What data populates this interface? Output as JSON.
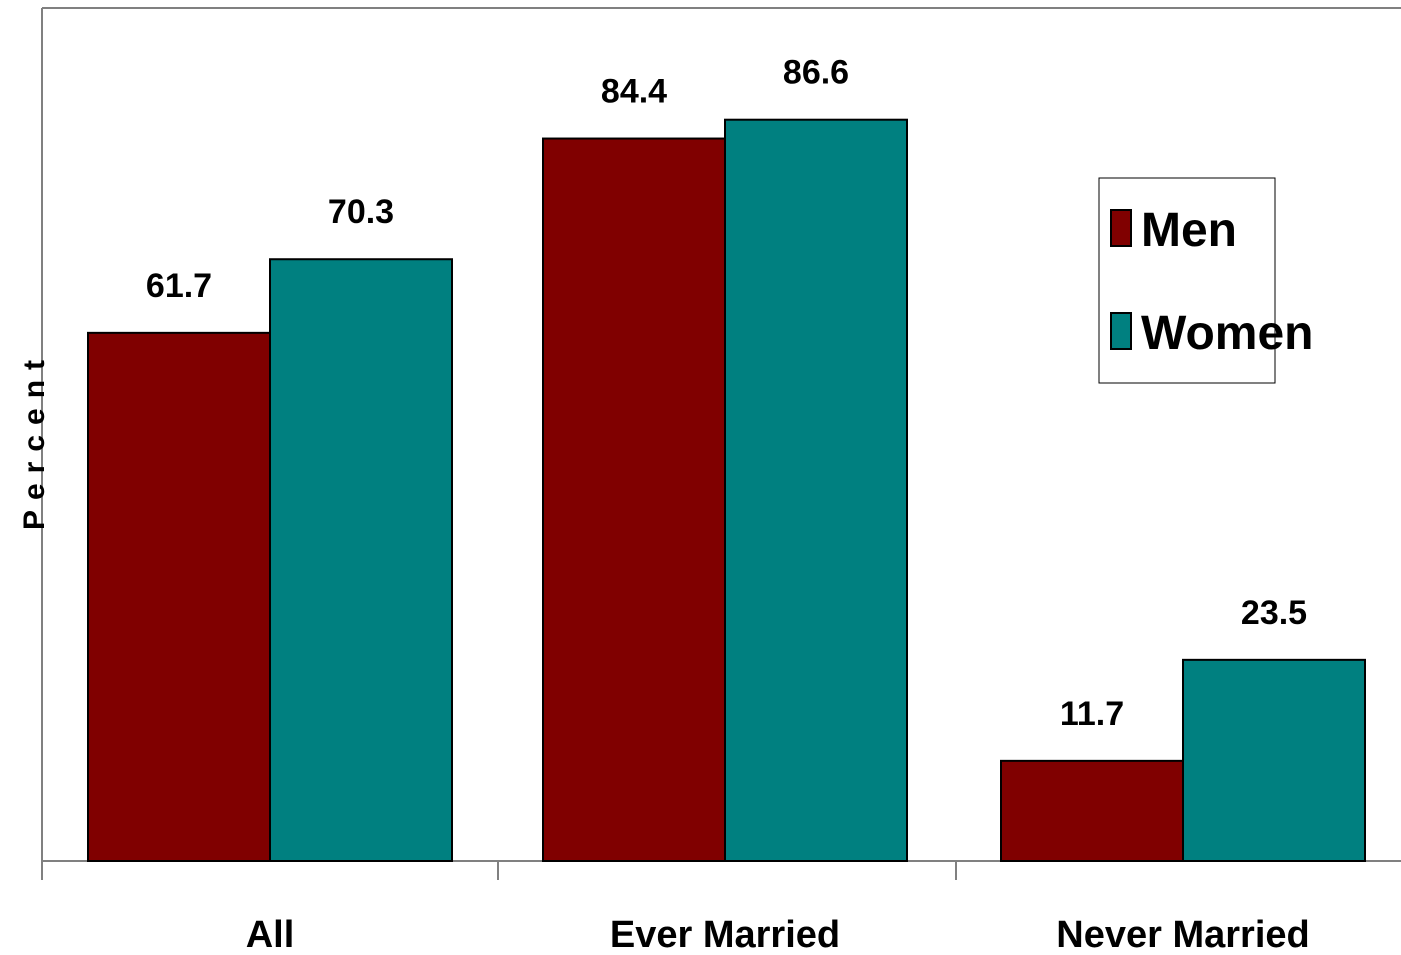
{
  "chart_data": {
    "type": "bar",
    "categories": [
      "All",
      "Ever Married",
      "Never Married"
    ],
    "series": [
      {
        "name": "Men",
        "color": "#800000",
        "values": [
          61.7,
          84.4,
          11.7
        ]
      },
      {
        "name": "Women",
        "color": "#008080",
        "values": [
          70.3,
          86.6,
          23.5
        ]
      }
    ],
    "ylabel": "Percent",
    "ylim": [
      0,
      100
    ],
    "grid": false,
    "legend_position": "top-right"
  }
}
